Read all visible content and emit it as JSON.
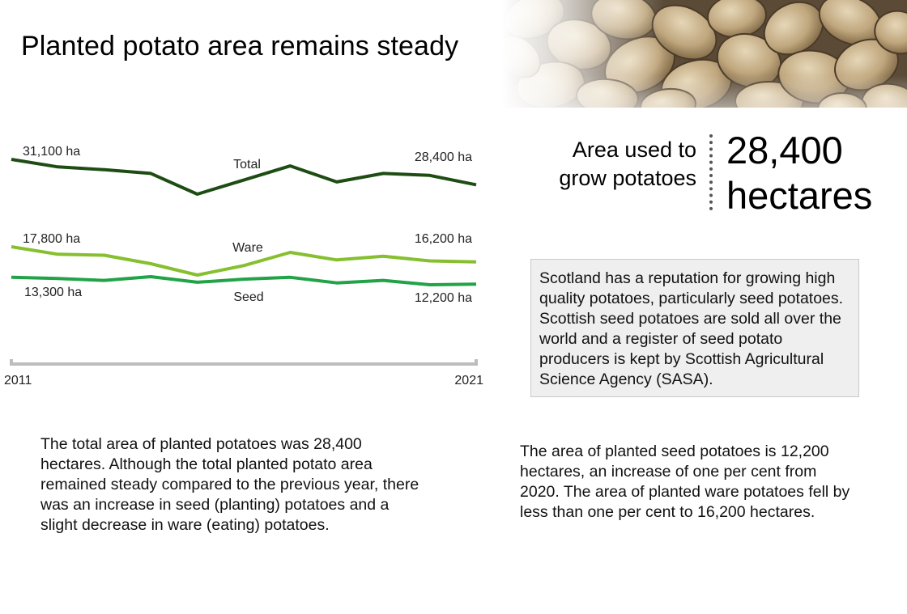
{
  "title": "Planted potato area remains steady",
  "photo": {
    "icon": "potatoes-photo"
  },
  "stat": {
    "label_line1": "Area used to",
    "label_line2": "grow potatoes",
    "value_line1": "28,400",
    "value_line2": "hectares"
  },
  "info_box": {
    "text": "Scotland has a reputation for growing high quality potatoes, particularly seed potatoes. Scottish seed potatoes are sold all over the world and a register of seed potato producers is kept by Scottish Agricultural Science Agency (SASA)."
  },
  "paragraph_left": "The total area of planted potatoes was 28,400 hectares. Although the total planted potato area remained steady compared to the previous year, there was an increase in seed (planting) potatoes and a slight decrease in ware (eating) potatoes.",
  "paragraph_right": "The area of planted seed potatoes is 12,200 hectares, an increase of one per cent from 2020. The area of planted ware potatoes fell by less than one per cent to 16,200 hectares.",
  "colors": {
    "total": "#1e4d14",
    "ware": "#86bf2f",
    "seed": "#22a348",
    "axis": "#bdbdbd"
  },
  "chart_data": {
    "type": "line",
    "x": [
      2011,
      2012,
      2013,
      2014,
      2015,
      2016,
      2017,
      2018,
      2019,
      2020,
      2021
    ],
    "x_tick_labels": [
      "2011",
      "2021"
    ],
    "series": [
      {
        "name": "Total",
        "values": [
          31100,
          30300,
          30000,
          29600,
          27400,
          28900,
          30400,
          28700,
          29600,
          29400,
          28400
        ],
        "start_label": "31,100 ha",
        "end_label": "28,400 ha"
      },
      {
        "name": "Ware",
        "values": [
          17800,
          17000,
          16900,
          16000,
          14800,
          15800,
          17200,
          16400,
          16800,
          16300,
          16200
        ],
        "start_label": "17,800 ha",
        "end_label": "16,200 ha"
      },
      {
        "name": "Seed",
        "values": [
          13300,
          13100,
          12800,
          13400,
          12500,
          13000,
          13300,
          12400,
          12800,
          12100,
          12200
        ],
        "start_label": "13,300 ha",
        "end_label": "12,200 ha"
      }
    ],
    "legend": "inline",
    "grid": false
  }
}
